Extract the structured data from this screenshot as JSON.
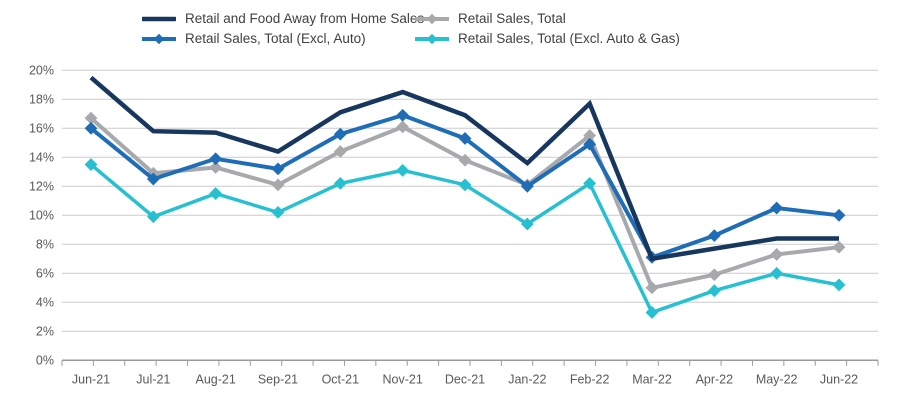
{
  "chart_data": {
    "type": "line",
    "title": "",
    "xlabel": "",
    "ylabel": "",
    "categories": [
      "Jun-21",
      "Jul-21",
      "Aug-21",
      "Sep-21",
      "Oct-21",
      "Nov-21",
      "Dec-21",
      "Jan-22",
      "Feb-22",
      "Mar-22",
      "Apr-22",
      "May-22",
      "Jun-22"
    ],
    "series": [
      {
        "name": "Retail and Food Away from Home Sales",
        "color": "#17375e",
        "marker": false,
        "values": [
          19.5,
          15.8,
          15.7,
          14.4,
          17.1,
          18.5,
          16.9,
          13.6,
          17.7,
          7.0,
          7.7,
          8.4,
          8.4
        ]
      },
      {
        "name": "Retail Sales, Total (Excl, Auto)",
        "color": "#1f6db6",
        "marker": true,
        "values": [
          16.0,
          12.5,
          13.9,
          13.2,
          15.6,
          16.9,
          15.3,
          12.0,
          14.9,
          7.1,
          8.6,
          10.5,
          10.0
        ]
      },
      {
        "name": "Retail Sales, Total",
        "color": "#a7a9ac",
        "marker": true,
        "values": [
          16.7,
          12.9,
          13.3,
          12.1,
          14.4,
          16.1,
          13.8,
          12.1,
          15.5,
          5.0,
          5.9,
          7.3,
          7.8
        ]
      },
      {
        "name": "Retail Sales, Total (Excl. Auto & Gas)",
        "color": "#27c0d1",
        "marker": true,
        "values": [
          13.5,
          9.9,
          11.5,
          10.2,
          12.2,
          13.1,
          12.1,
          9.4,
          12.2,
          3.3,
          4.8,
          6.0,
          5.2
        ]
      }
    ],
    "ylim": [
      0,
      20
    ],
    "ytick_step": 2,
    "ytick_labels": [
      "0%",
      "2%",
      "4%",
      "6%",
      "8%",
      "10%",
      "12%",
      "14%",
      "16%",
      "18%",
      "20%"
    ],
    "grid": true,
    "legend_position": "top",
    "legend_columns": [
      [
        0,
        1
      ],
      [
        2,
        3
      ]
    ]
  },
  "colors": {
    "background": "#ffffff",
    "gridline": "#cbcbcb",
    "axis": "#9a9a9a",
    "tick_label": "#58595b",
    "legend_text": "#414042"
  }
}
